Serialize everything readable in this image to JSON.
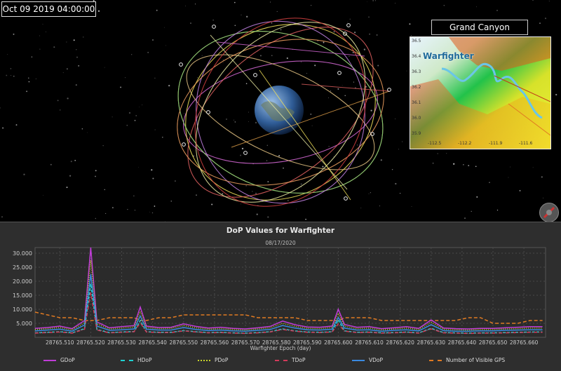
{
  "scene": {
    "timestamp": "Oct 09 2019 04:00:00",
    "inset": {
      "title": "Grand Canyon",
      "label": "Warfighter",
      "lat_ticks": [
        "36.5",
        "36.4",
        "36.3",
        "36.2",
        "36.1",
        "36.0",
        "35.9"
      ],
      "lon_ticks": [
        "-112.5",
        "-112.2",
        "-111.9",
        "-111.6"
      ]
    }
  },
  "colors": {
    "gdop": "#c03cd8",
    "hdop": "#1fd2d2",
    "pdop": "#c8d32a",
    "tdop": "#d23a5a",
    "vdop": "#3a8ae0",
    "visible": "#e07a22"
  },
  "chart_data": {
    "type": "line",
    "title": "DoP Values for Warfighter",
    "subtitle": "08/17/2020",
    "xlabel": "Warfighter Epoch (day)",
    "ylabel": "",
    "yticks": [
      "30.000",
      "25.000",
      "20.000",
      "15.000",
      "10.000",
      "5.000"
    ],
    "xticks": [
      "28765.510",
      "28765.520",
      "28765.530",
      "28765.540",
      "28765.550",
      "28765.560",
      "28765.570",
      "28765.580",
      "28765.590",
      "28765.600",
      "28765.610",
      "28765.620",
      "28765.630",
      "28765.640",
      "28765.650",
      "28765.660"
    ],
    "xlim": [
      28765.502,
      28765.667
    ],
    "ylim": [
      0,
      32
    ],
    "grid": true,
    "legend_position": "bottom",
    "x": [
      28765.502,
      28765.506,
      28765.51,
      28765.514,
      28765.518,
      28765.52,
      28765.522,
      28765.526,
      28765.53,
      28765.534,
      28765.536,
      28765.538,
      28765.542,
      28765.546,
      28765.55,
      28765.554,
      28765.558,
      28765.562,
      28765.566,
      28765.57,
      28765.574,
      28765.578,
      28765.582,
      28765.586,
      28765.59,
      28765.594,
      28765.598,
      28765.6,
      28765.602,
      28765.606,
      28765.61,
      28765.614,
      28765.618,
      28765.622,
      28765.626,
      28765.63,
      28765.634,
      28765.638,
      28765.642,
      28765.646,
      28765.65,
      28765.654,
      28765.658,
      28765.662,
      28765.666
    ],
    "series": [
      {
        "name": "GDoP",
        "key": "gdop",
        "values": [
          3.2,
          3.5,
          4.0,
          3.1,
          6.0,
          32.0,
          5.5,
          3.4,
          3.8,
          4.2,
          10.8,
          4.0,
          3.5,
          3.6,
          4.8,
          3.9,
          3.3,
          3.6,
          3.2,
          3.0,
          3.4,
          3.9,
          5.8,
          4.5,
          3.7,
          3.6,
          4.0,
          10.0,
          4.6,
          3.6,
          3.8,
          3.1,
          3.4,
          3.8,
          3.2,
          6.2,
          3.3,
          3.1,
          3.0,
          3.2,
          3.2,
          3.4,
          3.6,
          3.8,
          3.8
        ]
      },
      {
        "name": "HDoP",
        "key": "hdop",
        "values": [
          1.6,
          1.8,
          2.0,
          1.6,
          3.1,
          19.0,
          2.8,
          1.7,
          1.9,
          2.1,
          6.0,
          2.0,
          1.8,
          1.8,
          2.4,
          2.0,
          1.7,
          1.8,
          1.6,
          1.5,
          1.7,
          2.0,
          3.0,
          2.3,
          1.9,
          1.8,
          2.0,
          6.2,
          2.3,
          1.8,
          1.9,
          1.6,
          1.7,
          1.9,
          1.6,
          3.2,
          1.7,
          1.6,
          1.5,
          1.6,
          1.6,
          1.7,
          1.8,
          1.9,
          1.9
        ]
      },
      {
        "name": "PDoP",
        "key": "pdop",
        "values": [
          2.8,
          3.1,
          3.5,
          2.7,
          5.2,
          27.5,
          4.8,
          3.0,
          3.3,
          3.7,
          9.2,
          3.5,
          3.1,
          3.2,
          4.2,
          3.4,
          2.9,
          3.1,
          2.8,
          2.6,
          3.0,
          3.4,
          5.0,
          3.9,
          3.2,
          3.1,
          3.5,
          8.6,
          4.0,
          3.1,
          3.3,
          2.7,
          3.0,
          3.3,
          2.8,
          5.4,
          2.9,
          2.7,
          2.6,
          2.8,
          2.8,
          3.0,
          3.1,
          3.3,
          3.3
        ]
      },
      {
        "name": "TDoP",
        "key": "tdop",
        "values": [
          1.5,
          1.7,
          1.9,
          1.5,
          2.9,
          16.0,
          2.6,
          1.6,
          1.8,
          2.0,
          5.2,
          1.9,
          1.7,
          1.7,
          2.3,
          1.9,
          1.6,
          1.7,
          1.5,
          1.4,
          1.6,
          1.9,
          2.8,
          2.2,
          1.8,
          1.7,
          1.9,
          4.8,
          2.2,
          1.7,
          1.8,
          1.5,
          1.6,
          1.8,
          1.5,
          3.0,
          1.6,
          1.5,
          1.4,
          1.5,
          1.5,
          1.6,
          1.7,
          1.8,
          1.8
        ]
      },
      {
        "name": "VDoP",
        "key": "vdop",
        "values": [
          2.3,
          2.6,
          2.9,
          2.2,
          4.4,
          22.5,
          4.0,
          2.5,
          2.7,
          3.0,
          7.6,
          2.9,
          2.6,
          2.6,
          3.5,
          2.8,
          2.4,
          2.6,
          2.3,
          2.2,
          2.5,
          2.8,
          4.2,
          3.3,
          2.7,
          2.6,
          2.9,
          7.1,
          3.3,
          2.6,
          2.7,
          2.2,
          2.5,
          2.7,
          2.3,
          4.5,
          2.4,
          2.2,
          2.2,
          2.3,
          2.3,
          2.5,
          2.6,
          2.7,
          2.7
        ]
      },
      {
        "name": "Number of Visible GPS",
        "key": "visible",
        "values": [
          9,
          8,
          7,
          7,
          6,
          6,
          6,
          7,
          7,
          7,
          6,
          6,
          7,
          7,
          8,
          8,
          8,
          8,
          8,
          8,
          7,
          7,
          7,
          7,
          6,
          6,
          6,
          6,
          7,
          7,
          7,
          6,
          6,
          6,
          6,
          6,
          6,
          6,
          7,
          7,
          5,
          5,
          5,
          6,
          6
        ]
      }
    ]
  }
}
